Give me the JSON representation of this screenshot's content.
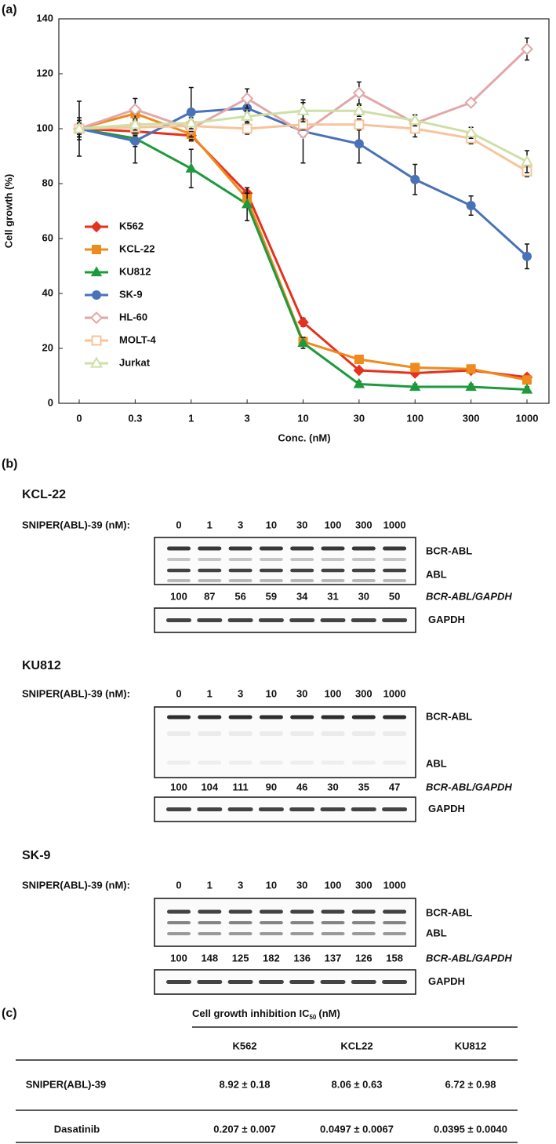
{
  "panel_labels": [
    "(a)",
    "(b)",
    "(c)"
  ],
  "chart_data": {
    "type": "line",
    "x_label": "Conc. (nM)",
    "y_label": "Cell growth (%)",
    "categories": [
      "0",
      "0.3",
      "1",
      "3",
      "10",
      "30",
      "100",
      "300",
      "1000"
    ],
    "ylim": [
      0,
      140
    ],
    "yticks": [
      0,
      20,
      40,
      60,
      80,
      100,
      120,
      140
    ],
    "legend": "lower-left",
    "series": [
      {
        "name": "K562",
        "color": "#e4321e",
        "marker": "diamond",
        "filled": true,
        "values": [
          100,
          99,
          97.5,
          76.5,
          29.5,
          12,
          11,
          12,
          9.5
        ],
        "errors": [
          3,
          2,
          2,
          2,
          1.5,
          1,
          1,
          1,
          1
        ]
      },
      {
        "name": "KCL-22",
        "color": "#ee8a1e",
        "marker": "square",
        "filled": true,
        "values": [
          100,
          105.5,
          98,
          74.5,
          22.5,
          16,
          13,
          12.5,
          8.5
        ],
        "errors": [
          3,
          2,
          2,
          2,
          1.5,
          1,
          1,
          1,
          1
        ]
      },
      {
        "name": "KU812",
        "color": "#1e9a3c",
        "marker": "triangle",
        "filled": true,
        "values": [
          100,
          96.5,
          85.5,
          72.5,
          22,
          7,
          6,
          6,
          5
        ],
        "errors": [
          10,
          9,
          7,
          6,
          2,
          1,
          1,
          1,
          1
        ]
      },
      {
        "name": "SK-9",
        "color": "#4a72b8",
        "marker": "circle",
        "filled": true,
        "values": [
          100,
          95.5,
          106,
          107.5,
          99,
          94.5,
          81.5,
          72,
          53.5
        ],
        "errors": [
          4,
          2,
          9,
          2,
          2,
          7,
          5.5,
          3.5,
          4.5
        ]
      },
      {
        "name": "HL-60",
        "color": "#e2a8a8",
        "marker": "diamond",
        "filled": false,
        "values": [
          100,
          107,
          100,
          111,
          98.5,
          113,
          102,
          109.5,
          129
        ],
        "errors": [
          3,
          4,
          3,
          3.5,
          11,
          4,
          3,
          1,
          4
        ]
      },
      {
        "name": "MOLT-4",
        "color": "#f6c49c",
        "marker": "square",
        "filled": false,
        "values": [
          100,
          100.5,
          101,
          100,
          101.5,
          101.5,
          100,
          96.5,
          84.5
        ],
        "errors": [
          2,
          2,
          2,
          2,
          2,
          2,
          3,
          2,
          2
        ]
      },
      {
        "name": "Jurkat",
        "color": "#cfdfa6",
        "marker": "triangle",
        "filled": false,
        "values": [
          100,
          101.5,
          102,
          104.5,
          106.5,
          106.5,
          103,
          98.5,
          88
        ],
        "errors": [
          2,
          2,
          2,
          2,
          4,
          2,
          2,
          2,
          4
        ]
      }
    ]
  },
  "blots": [
    {
      "cell_line": "KCL-22",
      "conc_label": "SNIPER(ABL)-39 (nM):",
      "concentrations": [
        0,
        1,
        3,
        10,
        30,
        100,
        300,
        1000
      ],
      "band_labels": [
        "BCR-ABL",
        "ABL"
      ],
      "ratio_label": "BCR-ABL/GAPDH",
      "ratios": [
        100,
        87,
        56,
        59,
        34,
        31,
        30,
        50
      ],
      "loading_label": "GAPDH"
    },
    {
      "cell_line": "KU812",
      "conc_label": "SNIPER(ABL)-39 (nM):",
      "concentrations": [
        0,
        1,
        3,
        10,
        30,
        100,
        300,
        1000
      ],
      "band_labels": [
        "BCR-ABL",
        "ABL"
      ],
      "ratio_label": "BCR-ABL/GAPDH",
      "ratios": [
        100,
        104,
        111,
        90,
        46,
        30,
        35,
        47
      ],
      "loading_label": "GAPDH"
    },
    {
      "cell_line": "SK-9",
      "conc_label": "SNIPER(ABL)-39 (nM):",
      "concentrations": [
        0,
        1,
        3,
        10,
        30,
        100,
        300,
        1000
      ],
      "band_labels": [
        "BCR-ABL",
        "ABL"
      ],
      "ratio_label": "BCR-ABL/GAPDH",
      "ratios": [
        100,
        148,
        125,
        182,
        136,
        137,
        126,
        158
      ],
      "loading_label": "GAPDH"
    }
  ],
  "table": {
    "header": {
      "text": "Cell growth inhibition IC",
      "subscript": "50",
      "unit": "(nM)"
    },
    "columns": [
      "K562",
      "KCL22",
      "KU812"
    ],
    "rows": [
      [
        "SNIPER(ABL)-39",
        "8.92 ± 0.18",
        "8.06 ± 0.63",
        "6.72 ± 0.98"
      ],
      [
        "Dasatinib",
        "0.207 ± 0.007",
        "0.0497 ± 0.0067",
        "0.0395 ± 0.0040"
      ]
    ]
  }
}
